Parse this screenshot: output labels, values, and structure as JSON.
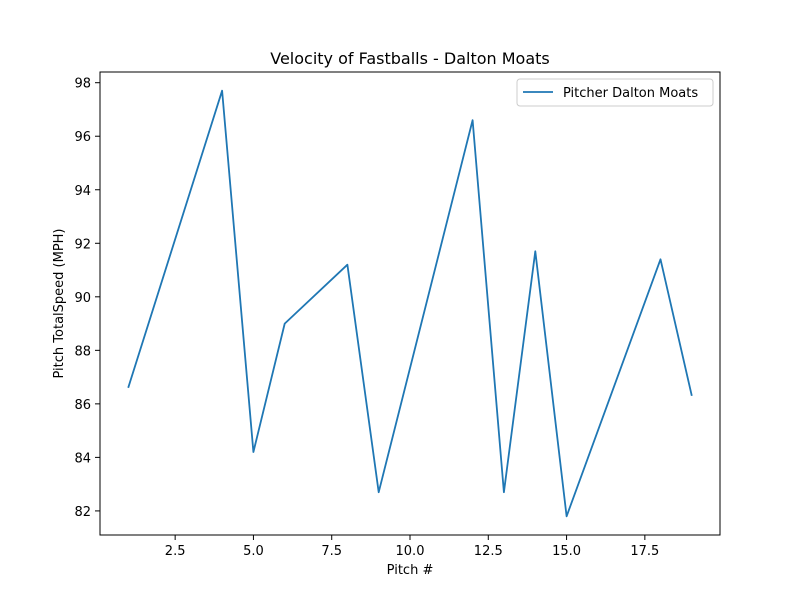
{
  "chart_data": {
    "type": "line",
    "title": "Velocity of Fastballs - Dalton Moats",
    "xlabel": "Pitch #",
    "ylabel": "Pitch TotalSpeed (MPH)",
    "xlim": [
      0.1,
      19.9
    ],
    "ylim": [
      81.1,
      98.4
    ],
    "xticks": [
      2.5,
      5.0,
      7.5,
      10.0,
      12.5,
      15.0,
      17.5
    ],
    "xtick_labels": [
      "2.5",
      "5.0",
      "7.5",
      "10.0",
      "12.5",
      "15.0",
      "17.5"
    ],
    "yticks": [
      82,
      84,
      86,
      88,
      90,
      92,
      94,
      96,
      98
    ],
    "ytick_labels": [
      "82",
      "84",
      "86",
      "88",
      "90",
      "92",
      "94",
      "96",
      "98"
    ],
    "grid": false,
    "legend_position": "top-right",
    "series": [
      {
        "name": "Pitcher Dalton Moats",
        "color": "#1f77b4",
        "x": [
          1,
          4,
          5,
          6,
          8,
          9,
          12,
          13,
          14,
          15,
          18,
          19
        ],
        "y": [
          86.6,
          97.7,
          84.2,
          89.0,
          91.2,
          82.7,
          96.6,
          82.7,
          91.7,
          81.8,
          91.4,
          86.3
        ]
      }
    ]
  }
}
